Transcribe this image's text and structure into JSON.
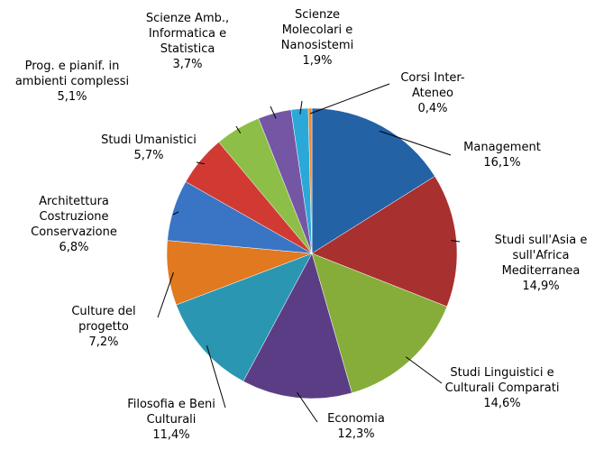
{
  "chart_data": {
    "type": "pie",
    "categories": [
      "Management",
      "Studi sull'Asia e sull'Africa Mediterranea",
      "Studi Linguistici e Culturali Comparati",
      "Economia",
      "Filosofia e Beni Culturali",
      "Culture del progetto",
      "Architettura Costruzione Conservazione",
      "Studi Umanistici",
      "Prog. e pianif. in ambienti complessi",
      "Scienze Amb., Informatica e Statistica",
      "Scienze Molecolari e Nanosistemi",
      "Corsi Inter-Ateneo"
    ],
    "values": [
      16.1,
      14.9,
      14.6,
      12.3,
      11.4,
      7.2,
      6.8,
      5.7,
      5.1,
      3.7,
      1.9,
      0.4
    ],
    "value_labels": [
      "16,1%",
      "14,9%",
      "14,6%",
      "12,3%",
      "11,4%",
      "7,2%",
      "6,8%",
      "5,7%",
      "5,1%",
      "3,7%",
      "1,9%",
      "0,4%"
    ],
    "colors": [
      "#2462a6",
      "#a8302e",
      "#86ad3a",
      "#5b3d86",
      "#2a96b2",
      "#e0791f",
      "#3a74c4",
      "#d13a33",
      "#8dbf48",
      "#7456a4",
      "#2aa9d9",
      "#f2892a"
    ]
  }
}
